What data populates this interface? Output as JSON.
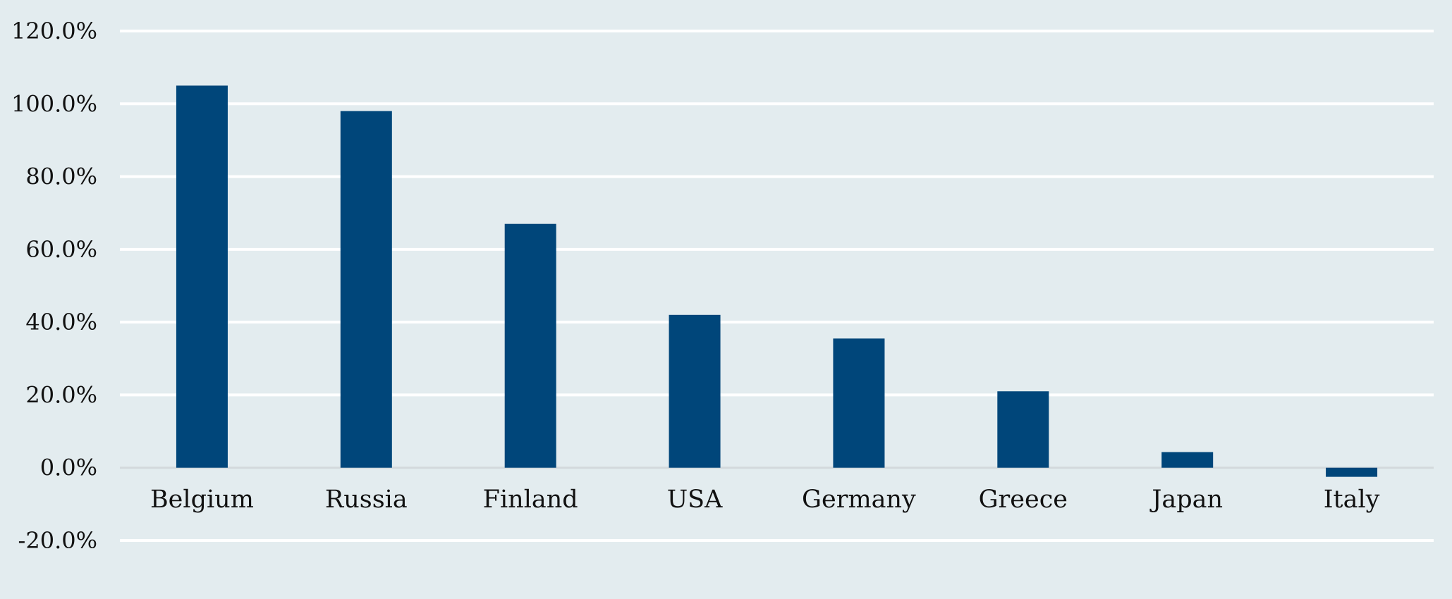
{
  "chart_data": {
    "type": "bar",
    "title": "",
    "xlabel": "",
    "ylabel": "",
    "categories": [
      "Belgium",
      "Russia",
      "Finland",
      "USA",
      "Germany",
      "Greece",
      "Japan",
      "Italy"
    ],
    "values": [
      105.0,
      98.0,
      67.0,
      42.0,
      35.5,
      21.0,
      4.3,
      -2.5
    ],
    "ylim": [
      -20,
      120
    ],
    "yticks": [
      120,
      100,
      80,
      60,
      40,
      20,
      0,
      -20
    ],
    "ytick_labels": [
      "120.0%",
      "100.0%",
      "80.0%",
      "60.0%",
      "40.0%",
      "20.0%",
      "0.0%",
      "-20.0%"
    ],
    "grid": true,
    "legend": "none",
    "colors": {
      "bar": "#00467a",
      "background": "#e3ecef",
      "grid": "#ffffff"
    }
  }
}
